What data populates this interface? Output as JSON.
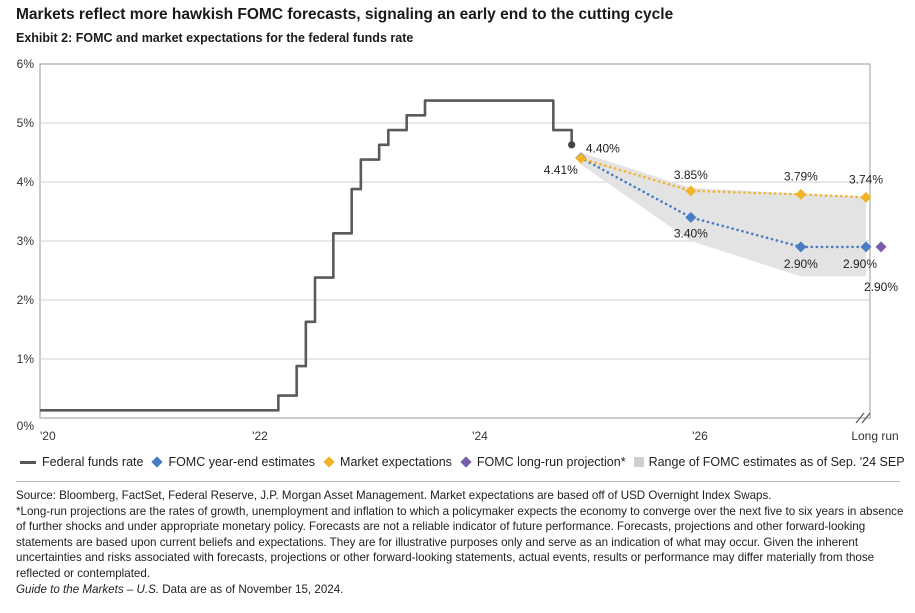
{
  "header": {
    "title": "Markets reflect more hawkish FOMC forecasts, signaling an early end to the cutting cycle",
    "subtitle": "Exhibit 2: FOMC and market expectations for the federal funds rate"
  },
  "colors": {
    "fed_funds": "#5a5a5a",
    "fomc": "#4a7cc4",
    "market": "#f0b429",
    "longrun": "#7a5ca8",
    "range": "#e3e3e3"
  },
  "chart_data": {
    "type": "line",
    "title": "FOMC and market expectations for the federal funds rate",
    "ylim": [
      0,
      6
    ],
    "yticks": [
      "0%",
      "1%",
      "2%",
      "3%",
      "4%",
      "5%",
      "6%"
    ],
    "xticks": [
      "'20",
      "'22",
      "'24",
      "'26",
      "Long run"
    ],
    "grid": true,
    "legend_position": "bottom",
    "series": [
      {
        "name": "Federal funds rate",
        "style": "solid",
        "points": [
          [
            "2020-01",
            0.13
          ],
          [
            "2021-09",
            0.13
          ],
          [
            "2022-03",
            0.13
          ],
          [
            "2022-03",
            0.38
          ],
          [
            "2022-05",
            0.38
          ],
          [
            "2022-05",
            0.88
          ],
          [
            "2022-06",
            0.88
          ],
          [
            "2022-06",
            1.63
          ],
          [
            "2022-07",
            1.63
          ],
          [
            "2022-07",
            2.38
          ],
          [
            "2022-09",
            2.38
          ],
          [
            "2022-09",
            3.13
          ],
          [
            "2022-11",
            3.13
          ],
          [
            "2022-11",
            3.88
          ],
          [
            "2022-12",
            3.88
          ],
          [
            "2022-12",
            4.38
          ],
          [
            "2023-02",
            4.38
          ],
          [
            "2023-02",
            4.63
          ],
          [
            "2023-03",
            4.63
          ],
          [
            "2023-03",
            4.88
          ],
          [
            "2023-05",
            4.88
          ],
          [
            "2023-05",
            5.13
          ],
          [
            "2023-07",
            5.13
          ],
          [
            "2023-07",
            5.38
          ],
          [
            "2024-09",
            5.38
          ],
          [
            "2024-09",
            4.88
          ],
          [
            "2024-11",
            4.88
          ],
          [
            "2024-11",
            4.63
          ]
        ]
      },
      {
        "name": "FOMC year-end estimates",
        "style": "dotted",
        "points": [
          [
            "2024-12",
            4.41
          ],
          [
            "2025-12",
            3.4
          ],
          [
            "2026-12",
            2.9
          ],
          [
            "Long run",
            2.9
          ]
        ],
        "labels": [
          "4.41%",
          "3.40%",
          "2.90%",
          "2.90%"
        ]
      },
      {
        "name": "Market expectations",
        "style": "dotted",
        "points": [
          [
            "2024-12",
            4.4
          ],
          [
            "2025-12",
            3.85
          ],
          [
            "2026-12",
            3.79
          ],
          [
            "Long run",
            3.74
          ]
        ],
        "labels": [
          "4.40%",
          "3.85%",
          "3.79%",
          "3.74%"
        ]
      },
      {
        "name": "FOMC long-run projection*",
        "style": "marker",
        "points": [
          [
            "Long run",
            2.9
          ]
        ],
        "labels": [
          "2.90%"
        ]
      }
    ],
    "range": {
      "name": "Range of FOMC estimates as of Sep. '24 SEP",
      "upper": [
        [
          "2024-12",
          4.5
        ],
        [
          "2025-12",
          3.9
        ],
        [
          "2026-12",
          3.8
        ],
        [
          "Long run",
          3.75
        ]
      ],
      "lower": [
        [
          "2024-12",
          4.3
        ],
        [
          "2025-12",
          3.0
        ],
        [
          "2026-12",
          2.4
        ],
        [
          "Long run",
          2.4
        ]
      ]
    }
  },
  "legend": [
    {
      "label": "Federal funds rate",
      "swatch": "line",
      "color": "#5a5a5a"
    },
    {
      "label": "FOMC year-end estimates",
      "swatch": "diamond",
      "color": "#4a7cc4"
    },
    {
      "label": "Market expectations",
      "swatch": "diamond",
      "color": "#f0b429"
    },
    {
      "label": "FOMC long-run projection*",
      "swatch": "diamond",
      "color": "#7a5ca8"
    },
    {
      "label": "Range of FOMC estimates as of Sep. '24 SEP",
      "swatch": "square",
      "color": "#cfcfcf"
    }
  ],
  "notes": {
    "source": "Source: Bloomberg, FactSet, Federal Reserve, J.P. Morgan Asset Management. Market expectations are based off of USD Overnight Index Swaps.",
    "longrun": "*Long-run projections are the rates of growth, unemployment and inflation to which a policymaker expects the economy to converge over the next five to six years in absence of further shocks and under appropriate monetary policy. Forecasts are not a reliable indicator of future performance. Forecasts, projections and other forward-looking statements are based upon current beliefs and expectations. They are for illustrative purposes only and serve as an indication of what may occur. Given the inherent uncertainties and risks associated with forecasts, projections or other forward-looking statements, actual events, results or performance may differ materially from those reflected or contemplated.",
    "guide": "Guide to the Markets – U.S.",
    "date": " Data are as of November 15, 2024."
  }
}
